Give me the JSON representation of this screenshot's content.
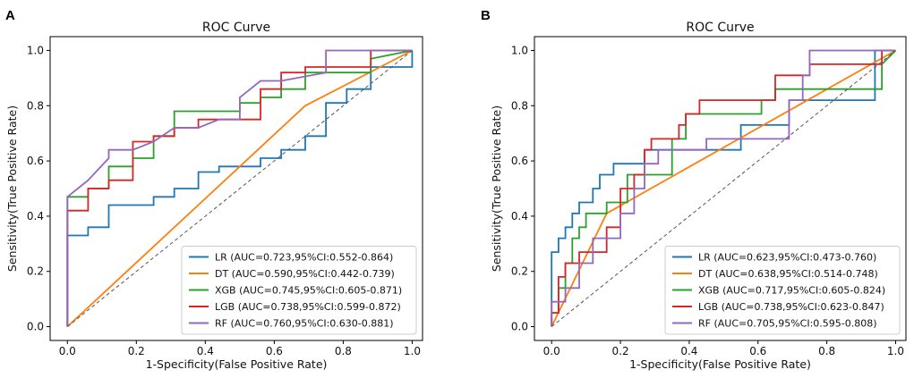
{
  "chart_data": [
    {
      "panel": "A",
      "type": "line",
      "title": "ROC Curve",
      "xlabel": "1-Specificity(False Positive Rate)",
      "ylabel": "Sensitivity(True Positive Rate)",
      "xlim": [
        -0.05,
        1.03
      ],
      "ylim": [
        -0.05,
        1.05
      ],
      "xticks": [
        "0.0",
        "0.2",
        "0.4",
        "0.6",
        "0.8",
        "1.0"
      ],
      "yticks": [
        "0.0",
        "0.2",
        "0.4",
        "0.6",
        "0.8",
        "1.0"
      ],
      "legend_position": "bottom-right",
      "series": [
        {
          "name": "LR",
          "legend": "LR  (AUC=0.723,95%CI:0.552-0.864)",
          "color": "#1f77b4",
          "x": [
            0,
            0,
            0.06,
            0.06,
            0.12,
            0.12,
            0.25,
            0.25,
            0.31,
            0.31,
            0.38,
            0.38,
            0.44,
            0.44,
            0.56,
            0.56,
            0.62,
            0.62,
            0.69,
            0.69,
            0.75,
            0.75,
            0.81,
            0.81,
            0.88,
            0.88,
            1.0,
            1.0
          ],
          "y": [
            0,
            0.33,
            0.33,
            0.36,
            0.36,
            0.44,
            0.44,
            0.47,
            0.47,
            0.5,
            0.5,
            0.56,
            0.56,
            0.58,
            0.58,
            0.61,
            0.61,
            0.64,
            0.64,
            0.69,
            0.69,
            0.81,
            0.81,
            0.86,
            0.86,
            0.94,
            0.94,
            1.0
          ]
        },
        {
          "name": "DT",
          "legend": "DT  (AUC=0.590,95%CI:0.442-0.739)",
          "color": "#ff7f0e",
          "x": [
            0,
            0.69,
            1.0
          ],
          "y": [
            0,
            0.8,
            1.0
          ]
        },
        {
          "name": "XGB",
          "legend": "XGB (AUC=0.745,95%CI:0.605-0.871)",
          "color": "#2ca02c",
          "x": [
            0,
            0,
            0.06,
            0.06,
            0.12,
            0.12,
            0.19,
            0.19,
            0.25,
            0.25,
            0.31,
            0.31,
            0.5,
            0.5,
            0.56,
            0.56,
            0.62,
            0.62,
            0.69,
            0.69,
            0.88,
            0.88,
            1.0
          ],
          "y": [
            0,
            0.47,
            0.47,
            0.5,
            0.5,
            0.58,
            0.58,
            0.61,
            0.61,
            0.69,
            0.69,
            0.78,
            0.78,
            0.81,
            0.81,
            0.83,
            0.83,
            0.86,
            0.86,
            0.92,
            0.92,
            0.97,
            1.0
          ]
        },
        {
          "name": "LGB",
          "legend": "LGB (AUC=0.738,95%CI:0.599-0.872)",
          "color": "#d62728",
          "x": [
            0,
            0,
            0.06,
            0.06,
            0.12,
            0.12,
            0.19,
            0.19,
            0.25,
            0.25,
            0.31,
            0.31,
            0.38,
            0.38,
            0.56,
            0.56,
            0.62,
            0.62,
            0.69,
            0.69,
            0.75,
            0.75,
            0.88,
            0.88,
            1.0
          ],
          "y": [
            0,
            0.42,
            0.42,
            0.5,
            0.5,
            0.53,
            0.53,
            0.67,
            0.67,
            0.69,
            0.69,
            0.72,
            0.72,
            0.75,
            0.75,
            0.86,
            0.86,
            0.92,
            0.92,
            0.94,
            0.94,
            0.94,
            0.94,
            1.0,
            1.0
          ]
        },
        {
          "name": "RF",
          "legend": "RF  (AUC=0.760,95%CI:0.630-0.881)",
          "color": "#9467bd",
          "x": [
            0,
            0,
            0.06,
            0.12,
            0.12,
            0.19,
            0.25,
            0.31,
            0.38,
            0.44,
            0.5,
            0.5,
            0.56,
            0.62,
            0.75,
            0.75,
            0.81,
            1.0
          ],
          "y": [
            0,
            0.47,
            0.53,
            0.61,
            0.64,
            0.64,
            0.67,
            0.72,
            0.72,
            0.75,
            0.75,
            0.83,
            0.89,
            0.89,
            0.92,
            1.0,
            1.0,
            1.0
          ]
        },
        {
          "name": "chance",
          "legend": "",
          "color": "#555555",
          "dashed": true,
          "x": [
            0,
            1
          ],
          "y": [
            0,
            1
          ]
        }
      ]
    },
    {
      "panel": "B",
      "type": "line",
      "title": "ROC Curve",
      "xlabel": "1-Specificity(False Positive Rate)",
      "ylabel": "Sensitivity(True Positive Rate)",
      "xlim": [
        -0.05,
        1.03
      ],
      "ylim": [
        -0.05,
        1.05
      ],
      "xticks": [
        "0.0",
        "0.2",
        "0.4",
        "0.6",
        "0.8",
        "1.0"
      ],
      "yticks": [
        "0.0",
        "0.2",
        "0.4",
        "0.6",
        "0.8",
        "1.0"
      ],
      "legend_position": "bottom-right",
      "series": [
        {
          "name": "LR",
          "legend": "LR  (AUC=0.623,95%CI:0.473-0.760)",
          "color": "#1f77b4",
          "x": [
            0,
            0,
            0.02,
            0.02,
            0.04,
            0.04,
            0.06,
            0.06,
            0.08,
            0.08,
            0.1,
            0.1,
            0.12,
            0.12,
            0.14,
            0.14,
            0.16,
            0.16,
            0.18,
            0.18,
            0.22,
            0.22,
            0.27,
            0.27,
            0.35,
            0.35,
            0.55,
            0.55,
            0.69,
            0.69,
            0.73,
            0.73,
            0.94,
            0.94,
            1.0
          ],
          "y": [
            0,
            0.27,
            0.27,
            0.32,
            0.32,
            0.36,
            0.36,
            0.41,
            0.41,
            0.45,
            0.45,
            0.45,
            0.45,
            0.5,
            0.5,
            0.55,
            0.55,
            0.55,
            0.55,
            0.59,
            0.59,
            0.59,
            0.59,
            0.64,
            0.64,
            0.64,
            0.64,
            0.73,
            0.73,
            0.82,
            0.82,
            0.82,
            0.82,
            1.0,
            1.0
          ]
        },
        {
          "name": "DT",
          "legend": "DT  (AUC=0.638,95%CI:0.514-0.748)",
          "color": "#ff7f0e",
          "x": [
            0,
            0.16,
            1.0
          ],
          "y": [
            0,
            0.41,
            1.0
          ]
        },
        {
          "name": "XGB",
          "legend": "XGB (AUC=0.717,95%CI:0.605-0.824)",
          "color": "#2ca02c",
          "x": [
            0,
            0,
            0.02,
            0.02,
            0.04,
            0.04,
            0.06,
            0.06,
            0.08,
            0.08,
            0.1,
            0.1,
            0.16,
            0.16,
            0.22,
            0.22,
            0.29,
            0.29,
            0.35,
            0.35,
            0.39,
            0.39,
            0.61,
            0.61,
            0.65,
            0.65,
            0.96,
            0.96,
            1.0
          ],
          "y": [
            0,
            0.05,
            0.05,
            0.14,
            0.14,
            0.23,
            0.23,
            0.32,
            0.32,
            0.36,
            0.36,
            0.41,
            0.41,
            0.45,
            0.45,
            0.55,
            0.55,
            0.55,
            0.55,
            0.68,
            0.68,
            0.77,
            0.77,
            0.82,
            0.82,
            0.86,
            0.86,
            0.95,
            1.0
          ]
        },
        {
          "name": "LGB",
          "legend": "LGB (AUC=0.738,95%CI:0.623-0.847)",
          "color": "#d62728",
          "x": [
            0,
            0,
            0.02,
            0.02,
            0.04,
            0.04,
            0.08,
            0.08,
            0.16,
            0.16,
            0.2,
            0.2,
            0.24,
            0.24,
            0.27,
            0.27,
            0.29,
            0.29,
            0.37,
            0.37,
            0.39,
            0.39,
            0.41,
            0.41,
            0.43,
            0.43,
            0.65,
            0.65,
            0.75,
            0.75,
            0.96,
            0.96,
            1.0
          ],
          "y": [
            0,
            0.05,
            0.05,
            0.18,
            0.18,
            0.23,
            0.23,
            0.27,
            0.27,
            0.36,
            0.36,
            0.5,
            0.5,
            0.55,
            0.55,
            0.64,
            0.64,
            0.68,
            0.68,
            0.73,
            0.73,
            0.77,
            0.77,
            0.77,
            0.77,
            0.82,
            0.82,
            0.91,
            0.91,
            0.95,
            0.95,
            1.0,
            1.0
          ]
        },
        {
          "name": "RF",
          "legend": "RF  (AUC=0.705,95%CI:0.595-0.808)",
          "color": "#9467bd",
          "x": [
            0,
            0,
            0.04,
            0.04,
            0.08,
            0.08,
            0.12,
            0.12,
            0.2,
            0.2,
            0.24,
            0.24,
            0.27,
            0.27,
            0.31,
            0.31,
            0.45,
            0.45,
            0.69,
            0.69,
            0.73,
            0.73,
            0.75,
            0.75,
            0.96,
            0.96,
            1.0
          ],
          "y": [
            0,
            0.09,
            0.09,
            0.14,
            0.14,
            0.23,
            0.23,
            0.32,
            0.32,
            0.41,
            0.41,
            0.5,
            0.5,
            0.59,
            0.59,
            0.64,
            0.64,
            0.68,
            0.68,
            0.82,
            0.82,
            0.91,
            0.91,
            1.0,
            1.0,
            1.0,
            1.0
          ]
        },
        {
          "name": "chance",
          "legend": "",
          "color": "#555555",
          "dashed": true,
          "x": [
            0,
            1
          ],
          "y": [
            0,
            1
          ]
        }
      ]
    }
  ]
}
